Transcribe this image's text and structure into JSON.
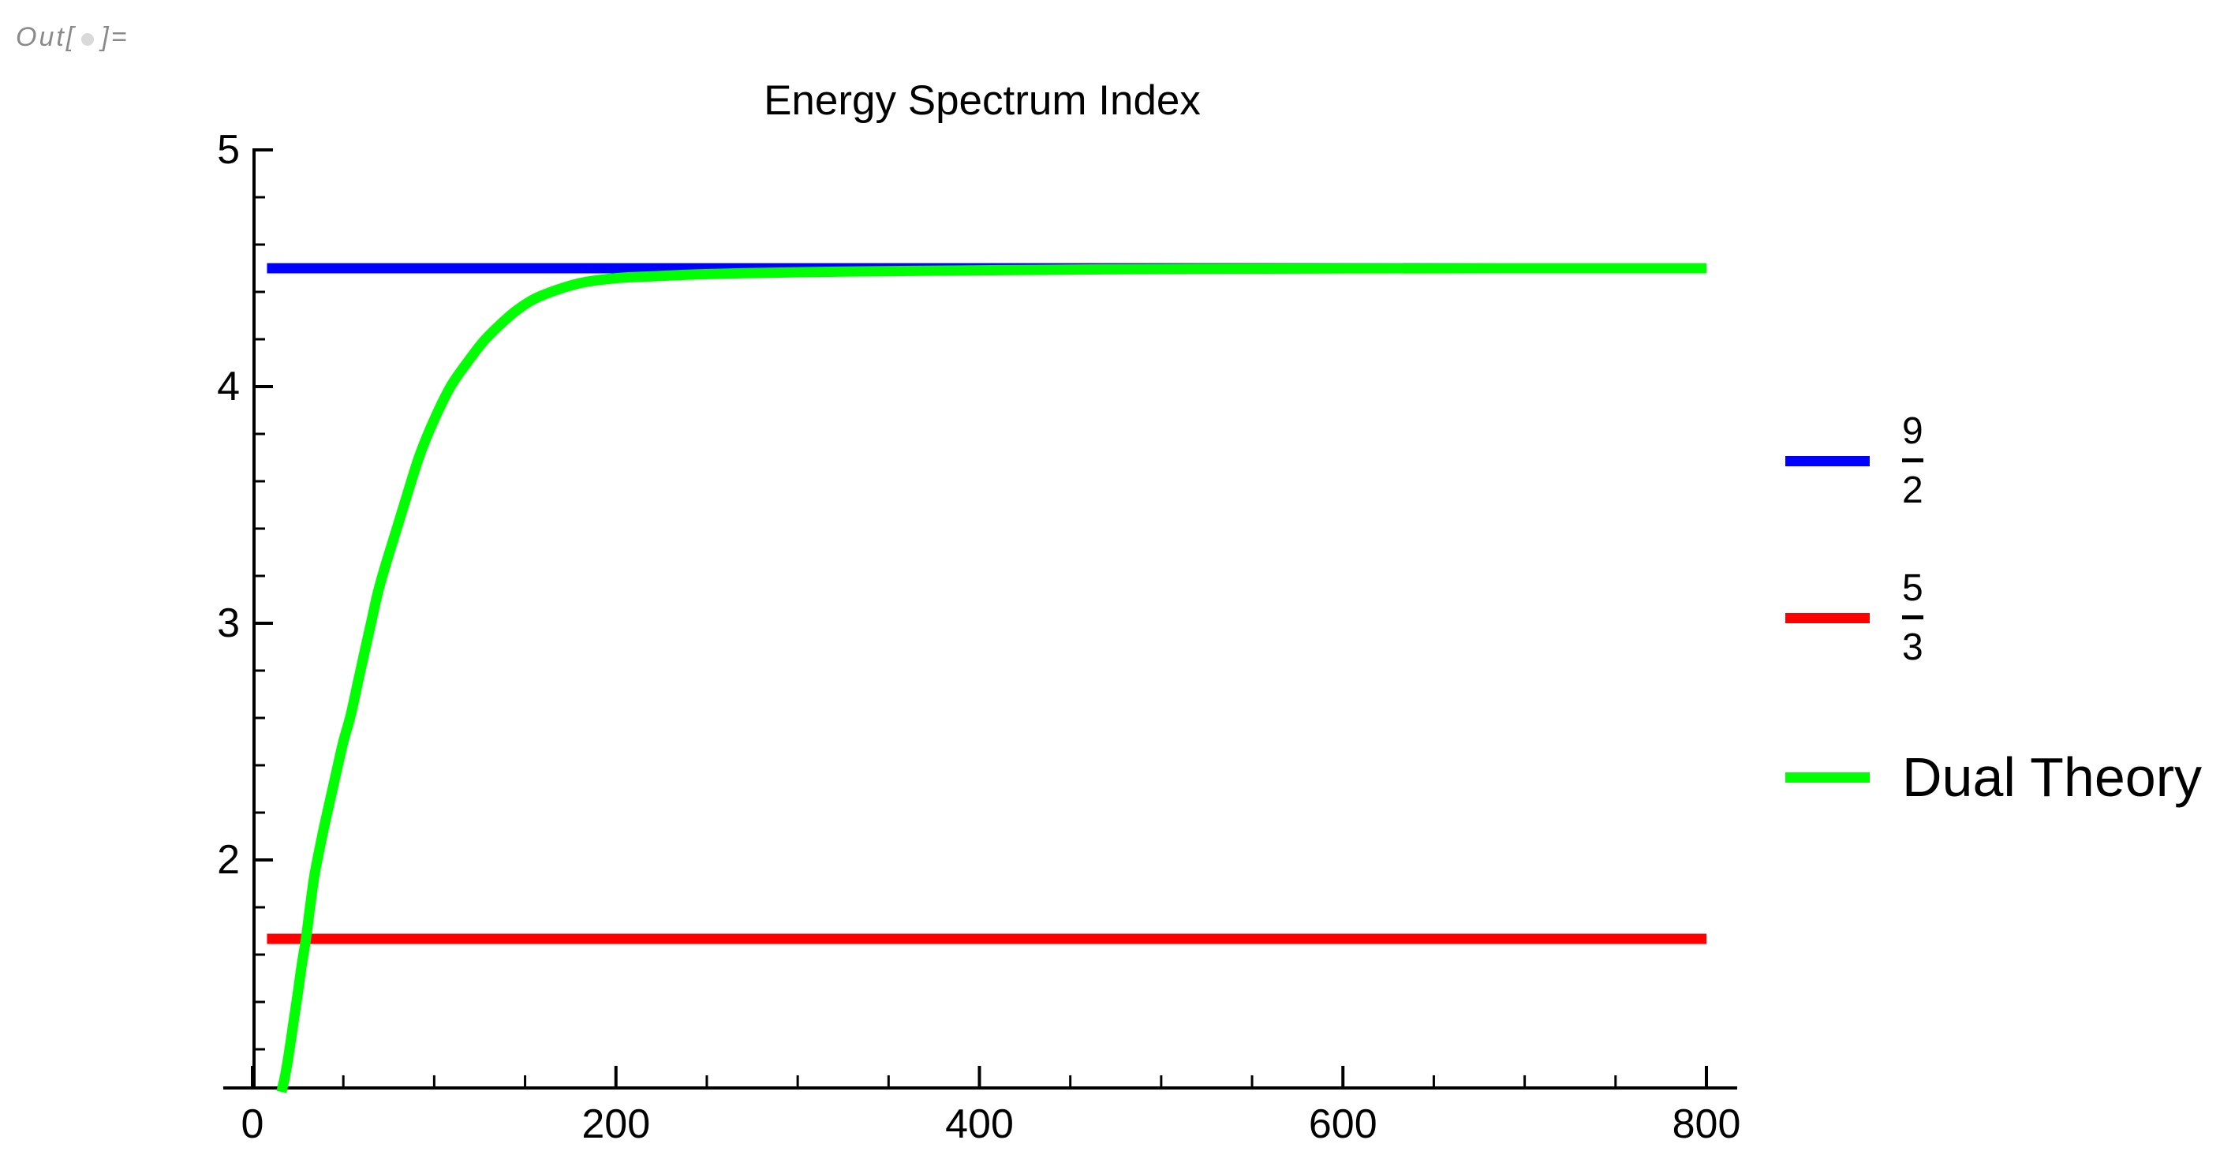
{
  "out_label": {
    "prefix": "Out[",
    "suffix": "]=",
    "bullet_icon": "circle",
    "text_color": "#8a8a8a",
    "bullet_color": "#d9d9d9"
  },
  "chart_data": {
    "type": "line",
    "title": "Energy Spectrum Index",
    "xlabel": "",
    "ylabel": "",
    "xlim": [
      0,
      800
    ],
    "ylim": [
      1,
      5
    ],
    "x_major_ticks": [
      0,
      200,
      400,
      600,
      800
    ],
    "x_minor_step": 50,
    "y_major_ticks": [
      2,
      3,
      4,
      5
    ],
    "y_minor_step": 0.2,
    "grid": false,
    "legend_position": "right",
    "axis_color": "#000000",
    "series": [
      {
        "name": "9/2",
        "legend": {
          "numerator": "9",
          "denominator": "2"
        },
        "color": "#0000FF",
        "type": "hline",
        "y": 4.5,
        "x_start": 8,
        "x_end": 800
      },
      {
        "name": "5/3",
        "legend": {
          "numerator": "5",
          "denominator": "3"
        },
        "color": "#FF0000",
        "type": "hline",
        "y": 1.6667,
        "x_start": 8,
        "x_end": 800
      },
      {
        "name": "Dual Theory",
        "color": "#00FF00",
        "type": "curve",
        "asymptote": 4.5,
        "points": [
          [
            16,
            1.02
          ],
          [
            18,
            1.09
          ],
          [
            20,
            1.18
          ],
          [
            22.5,
            1.31
          ],
          [
            25,
            1.44
          ],
          [
            27,
            1.55
          ],
          [
            29.5,
            1.67
          ],
          [
            31.5,
            1.79
          ],
          [
            34,
            1.93
          ],
          [
            37,
            2.05
          ],
          [
            40,
            2.16
          ],
          [
            43.5,
            2.28
          ],
          [
            47,
            2.4
          ],
          [
            50,
            2.5
          ],
          [
            54,
            2.61
          ],
          [
            58,
            2.75
          ],
          [
            62,
            2.89
          ],
          [
            65.5,
            3.01
          ],
          [
            69,
            3.13
          ],
          [
            73,
            3.24
          ],
          [
            77,
            3.34
          ],
          [
            81,
            3.44
          ],
          [
            85,
            3.54
          ],
          [
            92,
            3.71
          ],
          [
            100,
            3.86
          ],
          [
            109,
            4.0
          ],
          [
            118,
            4.1
          ],
          [
            127,
            4.19
          ],
          [
            136,
            4.26
          ],
          [
            145,
            4.32
          ],
          [
            155,
            4.37
          ],
          [
            168,
            4.41
          ],
          [
            182,
            4.44
          ],
          [
            200,
            4.458
          ],
          [
            220,
            4.466
          ],
          [
            245,
            4.474
          ],
          [
            270,
            4.479
          ],
          [
            300,
            4.483
          ],
          [
            340,
            4.487
          ],
          [
            382,
            4.49
          ],
          [
            430,
            4.493
          ],
          [
            480,
            4.496
          ],
          [
            540,
            4.498
          ],
          [
            600,
            4.499
          ],
          [
            700,
            4.5
          ],
          [
            800,
            4.5
          ]
        ]
      }
    ]
  }
}
